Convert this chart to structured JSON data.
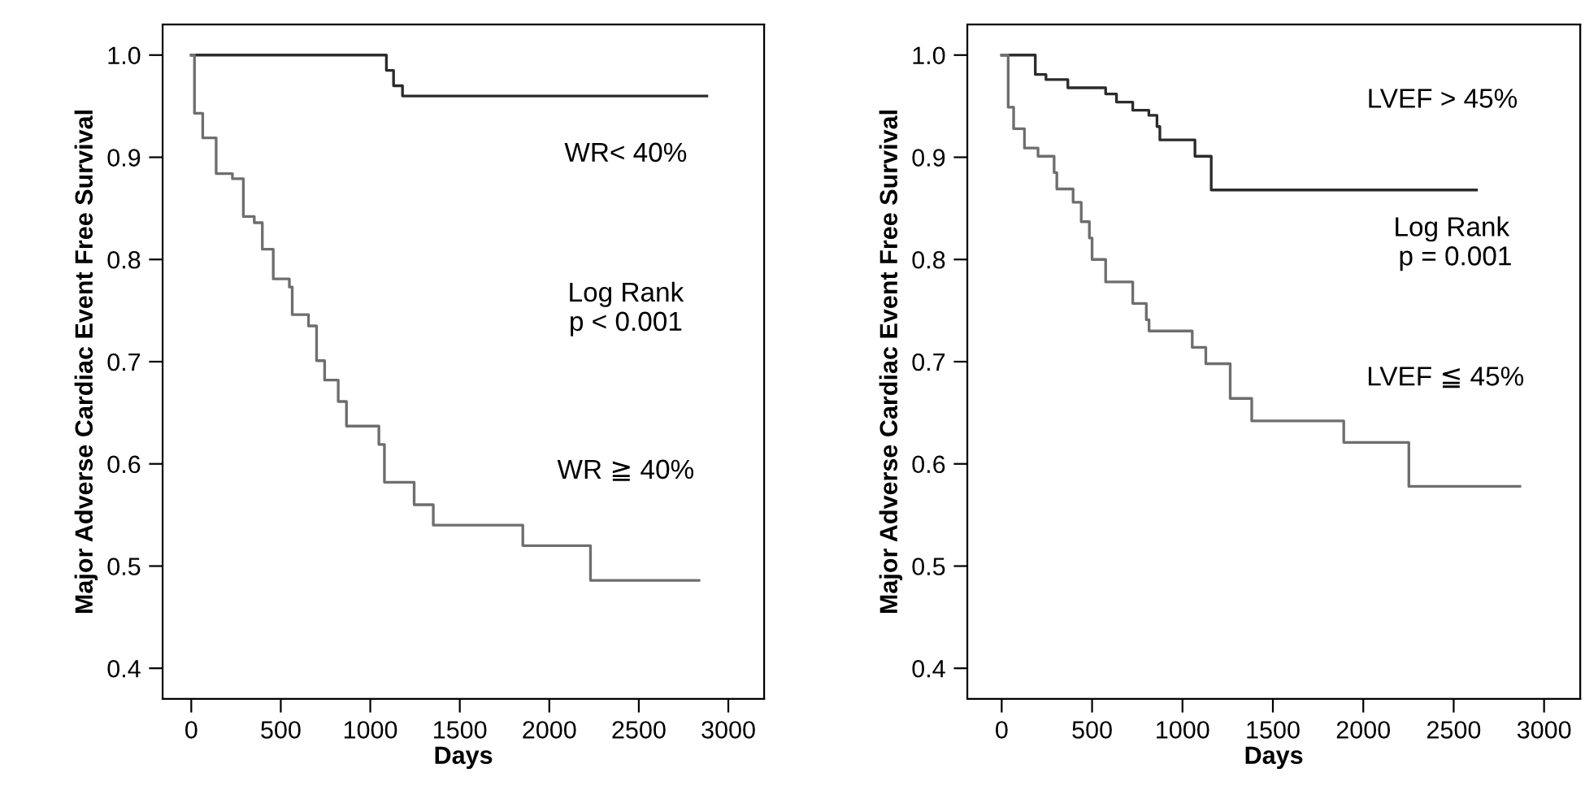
{
  "chart_data": [
    {
      "type": "step",
      "xlabel": "Days",
      "ylabel": "Major Adverse Cardiac Event Free Survival",
      "xlim": [
        -160,
        3200
      ],
      "ylim": [
        0.37,
        1.03
      ],
      "xticks": [
        0,
        500,
        1000,
        1500,
        2000,
        2500,
        3000
      ],
      "yticks": [
        0.4,
        0.5,
        0.6,
        0.7,
        0.8,
        0.9,
        {
          "value": 1,
          "label": "1.0"
        }
      ],
      "grid": false,
      "legend": false,
      "annotations": [
        "WR< 40%",
        "Log Rank\np < 0.001",
        "WR ≧ 40%"
      ],
      "series": [
        {
          "color": "#2b2b2b",
          "x": [
            0,
            1090,
            1130,
            1180,
            2880
          ],
          "values": [
            1.0,
            0.985,
            0.97,
            0.96,
            0.96
          ]
        },
        {
          "color": "#6e6e6e",
          "x": [
            0,
            18,
            64,
            139,
            230,
            291,
            352,
            397,
            458,
            548,
            564,
            655,
            700,
            745,
            821,
            867,
            1048,
            1079,
            1245,
            1352,
            1852,
            2230,
            2836
          ],
          "values": [
            1.0,
            0.943,
            0.919,
            0.884,
            0.879,
            0.842,
            0.836,
            0.81,
            0.781,
            0.773,
            0.746,
            0.735,
            0.701,
            0.682,
            0.661,
            0.637,
            0.619,
            0.582,
            0.56,
            0.54,
            0.52,
            0.486,
            0.486
          ]
        }
      ]
    },
    {
      "type": "step",
      "xlabel": "Days",
      "ylabel": "Major Adverse Cardiac Event Free Survival",
      "xlim": [
        -190,
        3200
      ],
      "ylim": [
        0.37,
        1.03
      ],
      "xticks": [
        0,
        500,
        1000,
        1500,
        2000,
        2500,
        3000
      ],
      "yticks": [
        0.4,
        0.5,
        0.6,
        0.7,
        0.8,
        0.9,
        {
          "value": 1,
          "label": "1.0"
        }
      ],
      "grid": false,
      "legend": false,
      "annotations": [
        "LVEF > 45%",
        "Log Rank\n p = 0.001",
        "LVEF ≦ 45%"
      ],
      "series": [
        {
          "color": "#2b2b2b",
          "x": [
            0,
            186,
            245,
            366,
            575,
            635,
            725,
            814,
            859,
            875,
            1069,
            1159,
            2626
          ],
          "values": [
            1.0,
            0.981,
            0.976,
            0.968,
            0.962,
            0.954,
            0.946,
            0.941,
            0.93,
            0.917,
            0.901,
            0.868,
            0.868
          ]
        },
        {
          "color": "#6e6e6e",
          "x": [
            0,
            36,
            66,
            126,
            201,
            290,
            305,
            395,
            440,
            485,
            500,
            575,
            725,
            800,
            815,
            1054,
            1129,
            1264,
            1383,
            1892,
            2252,
            2866
          ],
          "values": [
            1.0,
            0.949,
            0.928,
            0.909,
            0.901,
            0.885,
            0.869,
            0.856,
            0.837,
            0.821,
            0.8,
            0.778,
            0.757,
            0.741,
            0.73,
            0.714,
            0.698,
            0.664,
            0.642,
            0.621,
            0.578,
            0.578
          ]
        }
      ]
    }
  ]
}
